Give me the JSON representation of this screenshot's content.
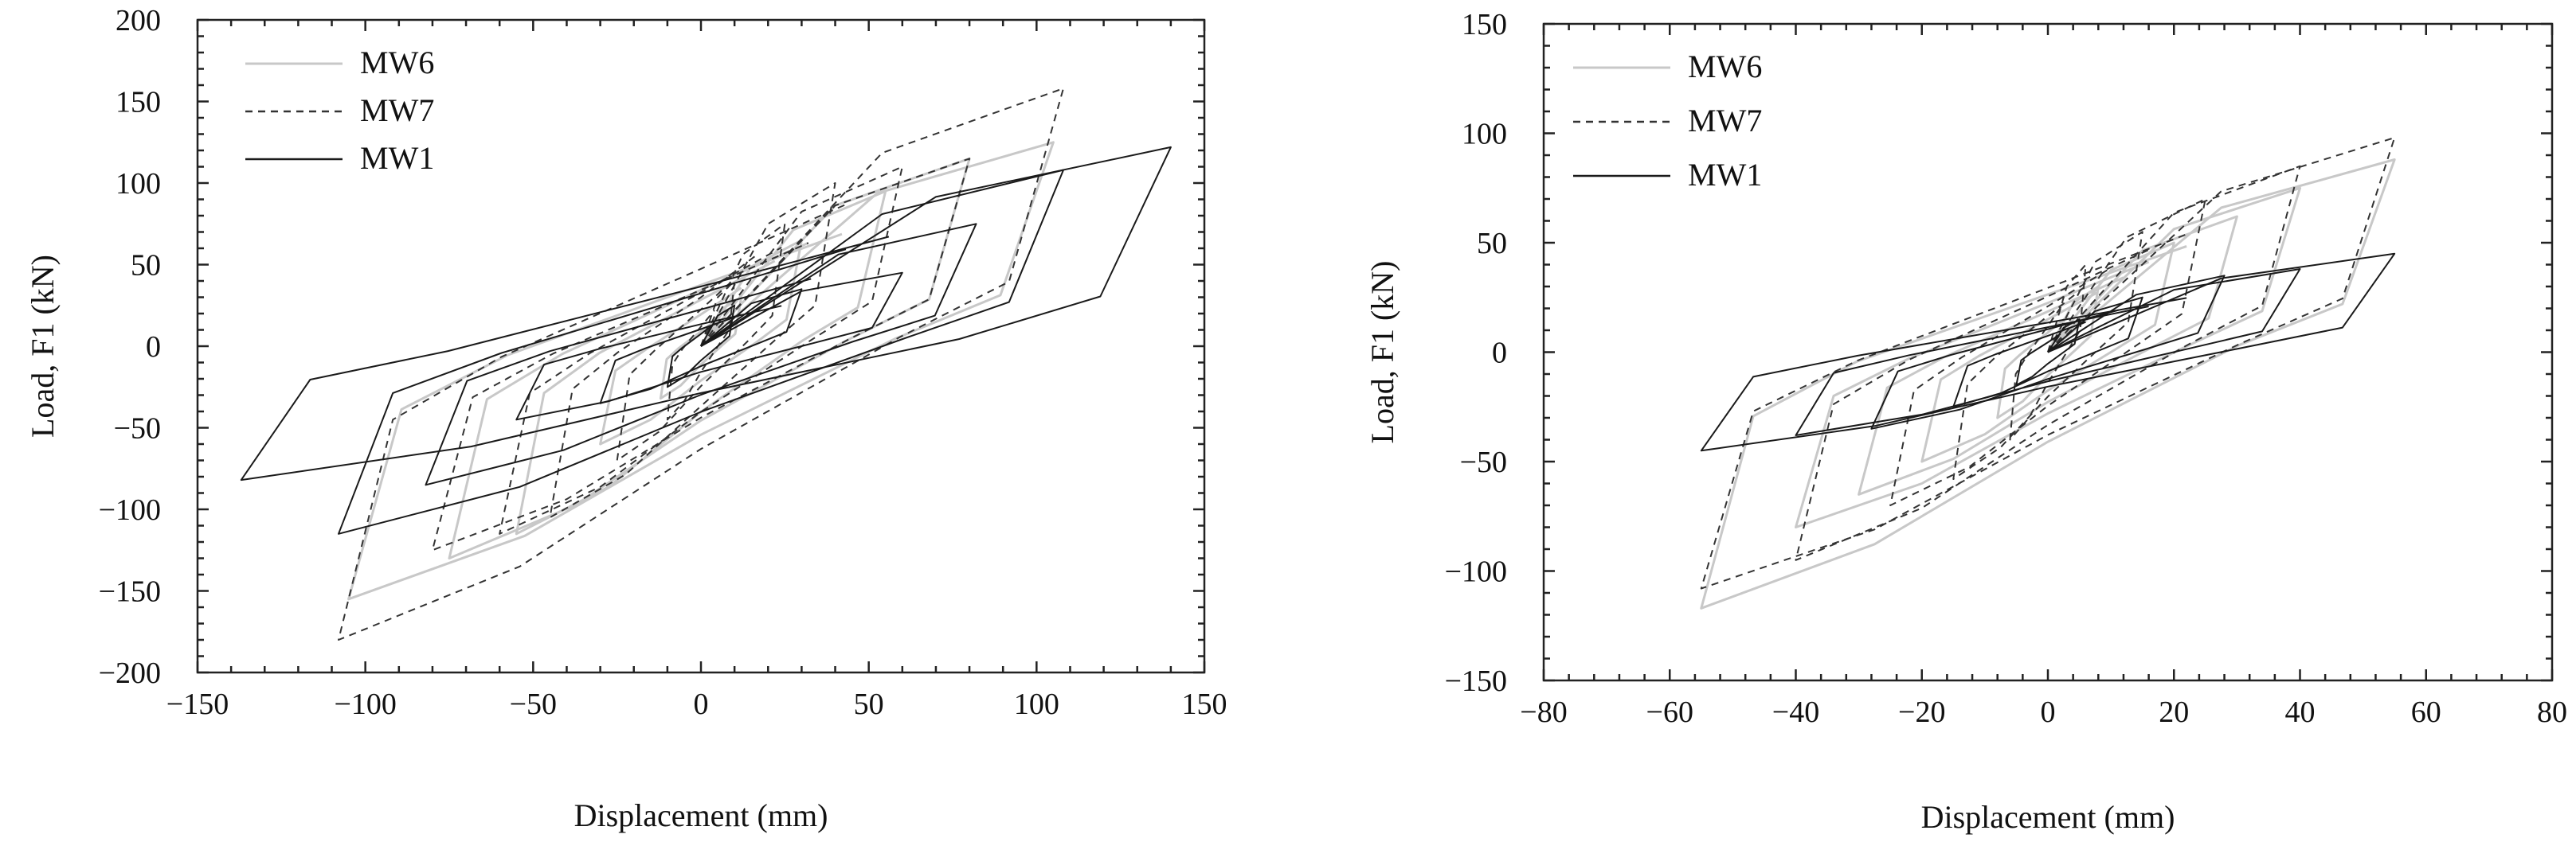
{
  "chart_data": [
    {
      "type": "line",
      "title": "",
      "xlabel": "Displacement (mm)",
      "ylabel": "Load, F1 (kN)",
      "xlim": [
        -150,
        150
      ],
      "ylim": [
        -200,
        200
      ],
      "x_ticks": [
        -150,
        -100,
        -50,
        0,
        50,
        100,
        150
      ],
      "y_ticks": [
        -200,
        -150,
        -100,
        -50,
        0,
        50,
        100,
        150,
        200
      ],
      "x_tick_labels": [
        "−150",
        "−100",
        "−50",
        "0",
        "50",
        "100",
        "150"
      ],
      "y_tick_labels": [
        "−200",
        "−150",
        "−100",
        "−50",
        "0",
        "50",
        "100",
        "150",
        "200"
      ],
      "grid": false,
      "legend_position": "top-left",
      "series": [
        {
          "name": "MW6",
          "color": "#c8c8c8",
          "style": "solid",
          "cycles": [
            {
              "dmax": 12,
              "fmax": 30,
              "dmin": -12,
              "fmin": -32
            },
            {
              "dmax": 30,
              "fmax": 65,
              "dmin": -30,
              "fmin": -60
            },
            {
              "dmax": 55,
              "fmax": 95,
              "dmin": -55,
              "fmin": -115
            },
            {
              "dmax": 80,
              "fmax": 115,
              "dmin": -75,
              "fmin": -130
            },
            {
              "dmax": 105,
              "fmax": 125,
              "dmin": -105,
              "fmin": -155
            }
          ]
        },
        {
          "name": "MW7",
          "color": "#333333",
          "style": "dashed",
          "cycles": [
            {
              "dmax": 10,
              "fmax": 40,
              "dmin": -10,
              "fmin": -45
            },
            {
              "dmax": 25,
              "fmax": 75,
              "dmin": -25,
              "fmin": -70
            },
            {
              "dmax": 40,
              "fmax": 100,
              "dmin": -45,
              "fmin": -105
            },
            {
              "dmax": 60,
              "fmax": 110,
              "dmin": -60,
              "fmin": -115
            },
            {
              "dmax": 80,
              "fmax": 115,
              "dmin": -80,
              "fmin": -125
            },
            {
              "dmax": 108,
              "fmax": 158,
              "dmin": -108,
              "fmin": -180
            }
          ]
        },
        {
          "name": "MW1",
          "color": "#1a1a1a",
          "style": "solid",
          "cycles": [
            {
              "dmax": 10,
              "fmax": 25,
              "dmin": -10,
              "fmin": -25
            },
            {
              "dmax": 30,
              "fmax": 35,
              "dmin": -30,
              "fmin": -35
            },
            {
              "dmax": 60,
              "fmax": 45,
              "dmin": -55,
              "fmin": -45
            },
            {
              "dmax": 82,
              "fmax": 75,
              "dmin": -82,
              "fmin": -85
            },
            {
              "dmax": 108,
              "fmax": 108,
              "dmin": -108,
              "fmin": -115
            },
            {
              "dmax": 140,
              "fmax": 122,
              "dmin": -137,
              "fmin": -82
            }
          ]
        }
      ]
    },
    {
      "type": "line",
      "title": "",
      "xlabel": "Displacement (mm)",
      "ylabel": "Load, F1 (kN)",
      "xlim": [
        -80,
        80
      ],
      "ylim": [
        -150,
        150
      ],
      "x_ticks": [
        -80,
        -60,
        -40,
        -20,
        0,
        20,
        40,
        60,
        80
      ],
      "y_ticks": [
        -150,
        -100,
        -50,
        0,
        50,
        100,
        150
      ],
      "x_tick_labels": [
        "−80",
        "−60",
        "−40",
        "−20",
        "0",
        "20",
        "40",
        "60",
        "80"
      ],
      "y_tick_labels": [
        "−150",
        "−100",
        "−50",
        "0",
        "50",
        "100",
        "150"
      ],
      "grid": false,
      "legend_position": "top-left",
      "series": [
        {
          "name": "MW6",
          "color": "#c8c8c8",
          "style": "solid",
          "cycles": [
            {
              "dmax": 8,
              "fmax": 30,
              "dmin": -8,
              "fmin": -30
            },
            {
              "dmax": 20,
              "fmax": 50,
              "dmin": -20,
              "fmin": -50
            },
            {
              "dmax": 30,
              "fmax": 62,
              "dmin": -30,
              "fmin": -65
            },
            {
              "dmax": 40,
              "fmax": 75,
              "dmin": -40,
              "fmin": -80
            },
            {
              "dmax": 55,
              "fmax": 88,
              "dmin": -55,
              "fmin": -117
            }
          ]
        },
        {
          "name": "MW7",
          "color": "#333333",
          "style": "dashed",
          "cycles": [
            {
              "dmax": 6,
              "fmax": 40,
              "dmin": -6,
              "fmin": -40
            },
            {
              "dmax": 15,
              "fmax": 55,
              "dmin": -15,
              "fmin": -58
            },
            {
              "dmax": 25,
              "fmax": 70,
              "dmin": -25,
              "fmin": -70
            },
            {
              "dmax": 40,
              "fmax": 85,
              "dmin": -40,
              "fmin": -95
            },
            {
              "dmax": 55,
              "fmax": 98,
              "dmin": -55,
              "fmin": -108
            }
          ]
        },
        {
          "name": "MW1",
          "color": "#1a1a1a",
          "style": "solid",
          "cycles": [
            {
              "dmax": 5,
              "fmax": 15,
              "dmin": -5,
              "fmin": -15
            },
            {
              "dmax": 15,
              "fmax": 25,
              "dmin": -15,
              "fmin": -25
            },
            {
              "dmax": 28,
              "fmax": 35,
              "dmin": -28,
              "fmin": -35
            },
            {
              "dmax": 40,
              "fmax": 38,
              "dmin": -40,
              "fmin": -38
            },
            {
              "dmax": 55,
              "fmax": 45,
              "dmin": -55,
              "fmin": -45
            }
          ]
        }
      ]
    }
  ]
}
